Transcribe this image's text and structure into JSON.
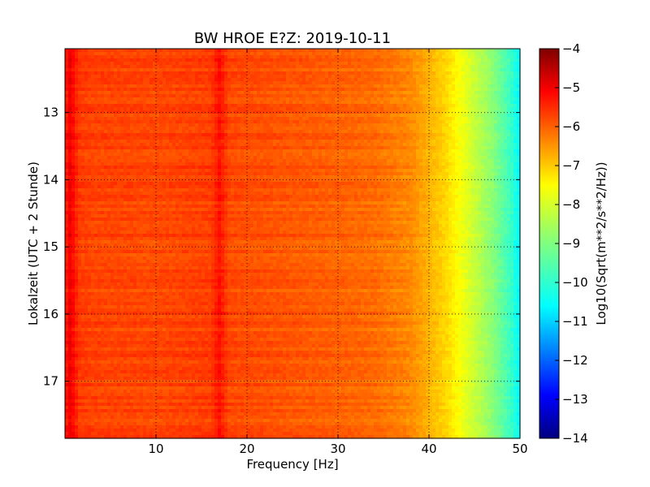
{
  "chart_data": {
    "type": "heatmap",
    "title": "BW HROE E?Z: 2019-10-11",
    "xlabel": "Frequency [Hz]",
    "ylabel": "Lokalzeit (UTC + 2 Stunde)",
    "xlim": [
      0,
      50
    ],
    "ylim": [
      17.85,
      12.05
    ],
    "x_ticks": [
      10,
      20,
      30,
      40,
      50
    ],
    "x_tick_labels": [
      "10",
      "20",
      "30",
      "40",
      "50"
    ],
    "y_ticks": [
      13,
      14,
      15,
      16,
      17
    ],
    "y_tick_labels": [
      "13",
      "14",
      "15",
      "16",
      "17"
    ],
    "grid": true,
    "colormap": "jet",
    "colorbar": {
      "label": "Log10(Sqrt(m**2/s**2/Hz))",
      "range": [
        -14,
        -4
      ],
      "ticks": [
        -4,
        -5,
        -6,
        -7,
        -8,
        -9,
        -10,
        -11,
        -12,
        -13,
        -14
      ],
      "tick_labels": [
        "−4",
        "−5",
        "−6",
        "−7",
        "−8",
        "−9",
        "−10",
        "−11",
        "−12",
        "−13",
        "−14"
      ]
    },
    "frequency_profile": {
      "frequency_hz": [
        0,
        0.6,
        1.5,
        3,
        10,
        16,
        17,
        18,
        25,
        30,
        34,
        38,
        40,
        42,
        43,
        44,
        45,
        46,
        47,
        48,
        49,
        50
      ],
      "log10_amplitude": [
        -5.6,
        -5.1,
        -5.8,
        -5.9,
        -5.95,
        -5.85,
        -5.4,
        -5.95,
        -6.1,
        -6.2,
        -6.3,
        -6.6,
        -7.0,
        -7.4,
        -7.7,
        -8.0,
        -8.3,
        -8.6,
        -8.9,
        -9.3,
        -9.7,
        -10.3
      ]
    },
    "line_features": [
      {
        "frequency_hz": 17.0,
        "log10_amplitude": -5.4
      },
      {
        "frequency_hz": 0.6,
        "log10_amplitude": -5.1
      }
    ]
  },
  "colors": {
    "jet_stops": [
      "#00007f",
      "#0000ff",
      "#007fff",
      "#00ffff",
      "#7fff7f",
      "#ffff00",
      "#ff7f00",
      "#ff0000",
      "#7f0000"
    ],
    "grid": "#000000",
    "axis": "#000000",
    "background": "#ffffff"
  }
}
